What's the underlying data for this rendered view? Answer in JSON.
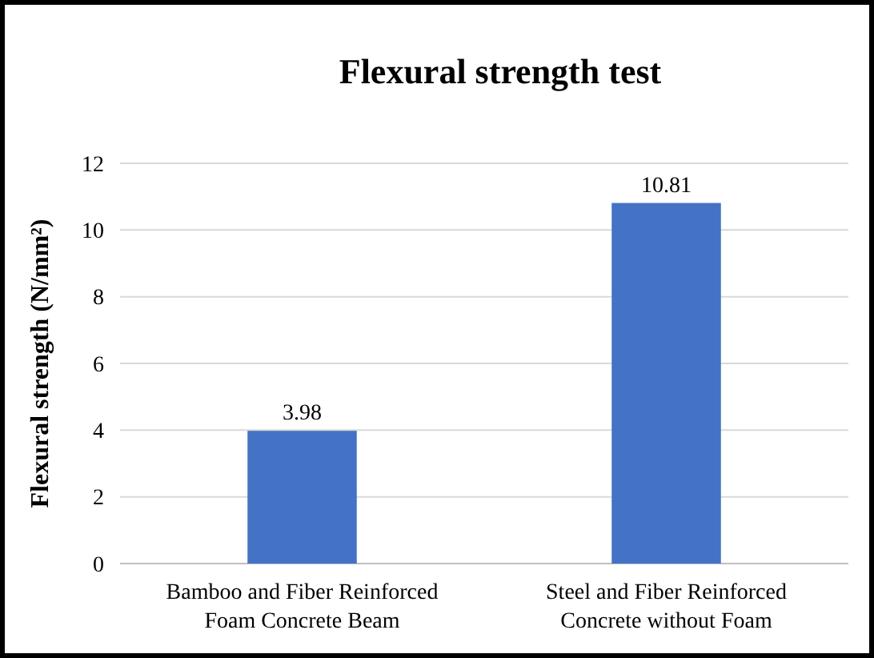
{
  "chart_data": {
    "type": "bar",
    "title": "Flexural strength test",
    "ylabel": "Flexural strength (N/mm²)",
    "categories": [
      "Bamboo and Fiber Reinforced Foam Concrete Beam",
      "Steel and Fiber Reinforced Concrete without Foam"
    ],
    "values": [
      3.98,
      10.81
    ],
    "color": "#4472c4",
    "ylim": [
      0,
      12
    ],
    "yticks": [
      0,
      2,
      4,
      6,
      8,
      10,
      12
    ],
    "grid": "y",
    "data_labels": true
  }
}
